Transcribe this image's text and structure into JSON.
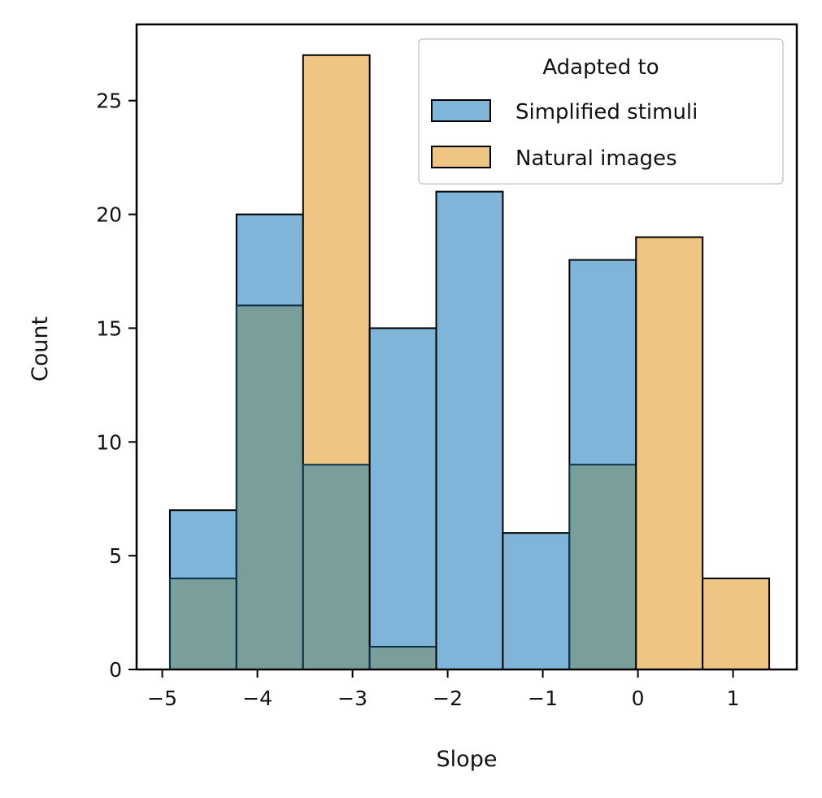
{
  "chart_data": {
    "type": "bar",
    "subtype": "overlapping-histogram",
    "xlabel": "Slope",
    "ylabel": "Count",
    "xlim": [
      -5.27,
      1.67
    ],
    "ylim": [
      0,
      28.35
    ],
    "x_ticks": [
      -5,
      -4,
      -3,
      -2,
      -1,
      0,
      1
    ],
    "y_ticks": [
      0,
      5,
      10,
      15,
      20,
      25
    ],
    "bin_edges": [
      -4.92,
      -4.22,
      -3.52,
      -2.82,
      -2.12,
      -1.42,
      -0.72,
      -0.02,
      0.68,
      1.38
    ],
    "legend": {
      "title": "Adapted to",
      "placement": "upper-right"
    },
    "series": [
      {
        "name": "Simplified stimuli",
        "color": "#7fb5d8",
        "values": [
          7,
          20,
          9,
          15,
          21,
          6,
          18,
          0,
          0
        ]
      },
      {
        "name": "Natural images",
        "color": "#eec582",
        "values": [
          4,
          16,
          27,
          1,
          0,
          0,
          9,
          19,
          4
        ]
      }
    ],
    "overlap_color": "#7a9e9a",
    "grid": false
  }
}
